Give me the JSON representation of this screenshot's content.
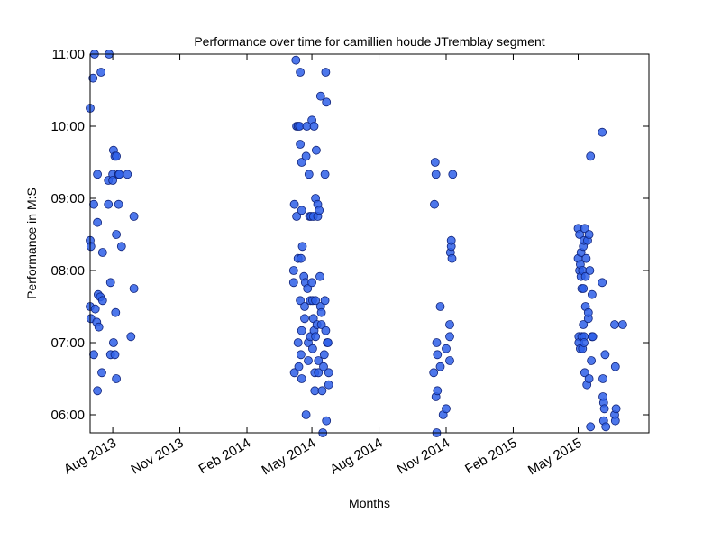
{
  "chart_data": {
    "type": "scatter",
    "title": "Performance over time for camillien houde JTremblay segment",
    "xlabel": "Months",
    "ylabel": "Performance in M:S",
    "x_axis": "date",
    "xlim": [
      "2013-07-01",
      "2015-08-06"
    ],
    "ylim": [
      "05:45",
      "11:00"
    ],
    "x_ticks": [
      {
        "date": "2013-08-01",
        "label": "Aug 2013"
      },
      {
        "date": "2013-11-01",
        "label": "Nov 2013"
      },
      {
        "date": "2014-02-01",
        "label": "Feb 2014"
      },
      {
        "date": "2014-05-01",
        "label": "May 2014"
      },
      {
        "date": "2014-08-01",
        "label": "Aug 2014"
      },
      {
        "date": "2014-11-01",
        "label": "Nov 2014"
      },
      {
        "date": "2015-02-01",
        "label": "Feb 2015"
      },
      {
        "date": "2015-05-01",
        "label": "May 2015"
      }
    ],
    "y_ticks": [
      "06:00",
      "07:00",
      "08:00",
      "09:00",
      "10:00",
      "11:00"
    ],
    "grid": false,
    "legend": false,
    "colors": {
      "marker_fill": "#2e5fe8",
      "marker_edge": "#10237a"
    },
    "points": [
      {
        "x": "2013-07-01",
        "y": "10:15"
      },
      {
        "x": "2013-07-01",
        "y": "08:25"
      },
      {
        "x": "2013-07-02",
        "y": "08:20"
      },
      {
        "x": "2013-07-01",
        "y": "07:30"
      },
      {
        "x": "2013-07-02",
        "y": "07:20"
      },
      {
        "x": "2013-07-05",
        "y": "10:40"
      },
      {
        "x": "2013-07-07",
        "y": "11:00"
      },
      {
        "x": "2013-07-06",
        "y": "08:55"
      },
      {
        "x": "2013-07-06",
        "y": "06:50"
      },
      {
        "x": "2013-07-08",
        "y": "07:28"
      },
      {
        "x": "2013-07-10",
        "y": "07:17"
      },
      {
        "x": "2013-07-11",
        "y": "06:20"
      },
      {
        "x": "2013-07-11",
        "y": "08:40"
      },
      {
        "x": "2013-07-11",
        "y": "09:20"
      },
      {
        "x": "2013-07-12",
        "y": "07:40"
      },
      {
        "x": "2013-07-13",
        "y": "07:13"
      },
      {
        "x": "2013-07-15",
        "y": "07:38"
      },
      {
        "x": "2013-07-16",
        "y": "10:45"
      },
      {
        "x": "2013-07-17",
        "y": "06:35"
      },
      {
        "x": "2013-07-18",
        "y": "07:35"
      },
      {
        "x": "2013-07-18",
        "y": "08:15"
      },
      {
        "x": "2013-07-26",
        "y": "09:15"
      },
      {
        "x": "2013-07-26",
        "y": "08:55"
      },
      {
        "x": "2013-07-27",
        "y": "11:00"
      },
      {
        "x": "2013-07-29",
        "y": "07:50"
      },
      {
        "x": "2013-07-29",
        "y": "06:50"
      },
      {
        "x": "2013-08-01",
        "y": "09:20"
      },
      {
        "x": "2013-08-01",
        "y": "09:15"
      },
      {
        "x": "2013-08-02",
        "y": "09:40"
      },
      {
        "x": "2013-08-02",
        "y": "07:00"
      },
      {
        "x": "2013-08-04",
        "y": "09:35"
      },
      {
        "x": "2013-08-04",
        "y": "06:50"
      },
      {
        "x": "2013-08-05",
        "y": "07:25"
      },
      {
        "x": "2013-08-06",
        "y": "09:35"
      },
      {
        "x": "2013-08-06",
        "y": "08:30"
      },
      {
        "x": "2013-08-06",
        "y": "06:30"
      },
      {
        "x": "2013-08-09",
        "y": "09:20"
      },
      {
        "x": "2013-08-10",
        "y": "09:20"
      },
      {
        "x": "2013-08-09",
        "y": "08:55"
      },
      {
        "x": "2013-08-13",
        "y": "08:20"
      },
      {
        "x": "2013-08-21",
        "y": "09:20"
      },
      {
        "x": "2013-08-26",
        "y": "07:05"
      },
      {
        "x": "2013-08-30",
        "y": "08:45"
      },
      {
        "x": "2013-08-30",
        "y": "07:45"
      },
      {
        "x": "2014-04-06",
        "y": "07:50"
      },
      {
        "x": "2014-04-06",
        "y": "08:00"
      },
      {
        "x": "2014-04-07",
        "y": "08:55"
      },
      {
        "x": "2014-04-07",
        "y": "06:35"
      },
      {
        "x": "2014-04-09",
        "y": "10:55"
      },
      {
        "x": "2014-04-10",
        "y": "10:00"
      },
      {
        "x": "2014-04-10",
        "y": "08:45"
      },
      {
        "x": "2014-04-12",
        "y": "10:00"
      },
      {
        "x": "2014-04-12",
        "y": "08:10"
      },
      {
        "x": "2014-04-12",
        "y": "07:00"
      },
      {
        "x": "2014-04-13",
        "y": "06:40"
      },
      {
        "x": "2014-04-14",
        "y": "10:00"
      },
      {
        "x": "2014-04-15",
        "y": "09:45"
      },
      {
        "x": "2014-04-15",
        "y": "07:35"
      },
      {
        "x": "2014-04-15",
        "y": "10:45"
      },
      {
        "x": "2014-04-16",
        "y": "06:50"
      },
      {
        "x": "2014-04-16",
        "y": "08:10"
      },
      {
        "x": "2014-04-17",
        "y": "09:30"
      },
      {
        "x": "2014-04-17",
        "y": "08:50"
      },
      {
        "x": "2014-04-17",
        "y": "07:10"
      },
      {
        "x": "2014-04-17",
        "y": "06:30"
      },
      {
        "x": "2014-04-18",
        "y": "08:20"
      },
      {
        "x": "2014-04-20",
        "y": "07:55"
      },
      {
        "x": "2014-04-21",
        "y": "07:30"
      },
      {
        "x": "2014-04-21",
        "y": "07:20"
      },
      {
        "x": "2014-04-22",
        "y": "07:50"
      },
      {
        "x": "2014-04-23",
        "y": "06:00"
      },
      {
        "x": "2014-04-23",
        "y": "09:35"
      },
      {
        "x": "2014-04-24",
        "y": "10:00"
      },
      {
        "x": "2014-04-25",
        "y": "07:45"
      },
      {
        "x": "2014-04-26",
        "y": "06:45"
      },
      {
        "x": "2014-04-26",
        "y": "07:00"
      },
      {
        "x": "2014-04-27",
        "y": "09:20"
      },
      {
        "x": "2014-04-28",
        "y": "08:45"
      },
      {
        "x": "2014-04-29",
        "y": "07:05"
      },
      {
        "x": "2014-04-29",
        "y": "07:35"
      },
      {
        "x": "2014-04-30",
        "y": "08:45"
      },
      {
        "x": "2014-05-01",
        "y": "07:50"
      },
      {
        "x": "2014-05-01",
        "y": "10:05"
      },
      {
        "x": "2014-05-02",
        "y": "07:35"
      },
      {
        "x": "2014-05-02",
        "y": "06:55"
      },
      {
        "x": "2014-05-03",
        "y": "07:20"
      },
      {
        "x": "2014-05-03",
        "y": "08:45"
      },
      {
        "x": "2014-05-04",
        "y": "10:00"
      },
      {
        "x": "2014-05-04",
        "y": "07:10"
      },
      {
        "x": "2014-05-05",
        "y": "06:20"
      },
      {
        "x": "2014-05-05",
        "y": "06:35"
      },
      {
        "x": "2014-05-06",
        "y": "09:00"
      },
      {
        "x": "2014-05-06",
        "y": "07:35"
      },
      {
        "x": "2014-05-06",
        "y": "07:05"
      },
      {
        "x": "2014-05-07",
        "y": "09:40"
      },
      {
        "x": "2014-05-08",
        "y": "07:15"
      },
      {
        "x": "2014-05-09",
        "y": "08:45"
      },
      {
        "x": "2014-05-09",
        "y": "08:55"
      },
      {
        "x": "2014-05-10",
        "y": "06:35"
      },
      {
        "x": "2014-05-10",
        "y": "06:45"
      },
      {
        "x": "2014-05-11",
        "y": "08:50"
      },
      {
        "x": "2014-05-12",
        "y": "07:55"
      },
      {
        "x": "2014-05-13",
        "y": "07:30"
      },
      {
        "x": "2014-05-13",
        "y": "10:25"
      },
      {
        "x": "2014-05-14",
        "y": "07:25"
      },
      {
        "x": "2014-05-14",
        "y": "07:15"
      },
      {
        "x": "2014-05-15",
        "y": "06:20"
      },
      {
        "x": "2014-05-16",
        "y": "05:45"
      },
      {
        "x": "2014-05-17",
        "y": "06:40"
      },
      {
        "x": "2014-05-18",
        "y": "06:50"
      },
      {
        "x": "2014-05-19",
        "y": "07:35"
      },
      {
        "x": "2014-05-19",
        "y": "09:20"
      },
      {
        "x": "2014-05-20",
        "y": "07:10"
      },
      {
        "x": "2014-05-20",
        "y": "10:45"
      },
      {
        "x": "2014-05-21",
        "y": "10:20"
      },
      {
        "x": "2014-05-21",
        "y": "05:55"
      },
      {
        "x": "2014-05-22",
        "y": "07:00"
      },
      {
        "x": "2014-05-23",
        "y": "07:00"
      },
      {
        "x": "2014-05-24",
        "y": "06:35"
      },
      {
        "x": "2014-05-24",
        "y": "06:25"
      },
      {
        "x": "2014-10-15",
        "y": "06:35"
      },
      {
        "x": "2014-10-16",
        "y": "08:55"
      },
      {
        "x": "2014-10-17",
        "y": "09:30"
      },
      {
        "x": "2014-10-18",
        "y": "09:20"
      },
      {
        "x": "2014-10-18",
        "y": "06:15"
      },
      {
        "x": "2014-10-19",
        "y": "07:00"
      },
      {
        "x": "2014-10-20",
        "y": "06:50"
      },
      {
        "x": "2014-10-20",
        "y": "06:20"
      },
      {
        "x": "2014-10-19",
        "y": "05:45"
      },
      {
        "x": "2014-10-24",
        "y": "07:30"
      },
      {
        "x": "2014-10-24",
        "y": "06:40"
      },
      {
        "x": "2014-10-28",
        "y": "06:00"
      },
      {
        "x": "2014-11-01",
        "y": "06:55"
      },
      {
        "x": "2014-11-01",
        "y": "06:05"
      },
      {
        "x": "2014-11-06",
        "y": "07:15"
      },
      {
        "x": "2014-11-06",
        "y": "07:05"
      },
      {
        "x": "2014-11-06",
        "y": "06:45"
      },
      {
        "x": "2014-11-07",
        "y": "08:15"
      },
      {
        "x": "2014-11-08",
        "y": "08:20"
      },
      {
        "x": "2014-11-08",
        "y": "08:25"
      },
      {
        "x": "2014-11-09",
        "y": "08:10"
      },
      {
        "x": "2014-11-10",
        "y": "09:20"
      },
      {
        "x": "2015-05-01",
        "y": "08:35"
      },
      {
        "x": "2015-05-01",
        "y": "08:10"
      },
      {
        "x": "2015-05-02",
        "y": "07:05"
      },
      {
        "x": "2015-05-02",
        "y": "07:00"
      },
      {
        "x": "2015-05-03",
        "y": "08:30"
      },
      {
        "x": "2015-05-03",
        "y": "08:00"
      },
      {
        "x": "2015-05-04",
        "y": "06:55"
      },
      {
        "x": "2015-05-04",
        "y": "08:05"
      },
      {
        "x": "2015-05-05",
        "y": "08:15"
      },
      {
        "x": "2015-05-05",
        "y": "07:55"
      },
      {
        "x": "2015-05-06",
        "y": "07:45"
      },
      {
        "x": "2015-05-06",
        "y": "07:05"
      },
      {
        "x": "2015-05-07",
        "y": "08:00"
      },
      {
        "x": "2015-05-07",
        "y": "06:55"
      },
      {
        "x": "2015-05-08",
        "y": "08:20"
      },
      {
        "x": "2015-05-08",
        "y": "07:45"
      },
      {
        "x": "2015-05-08",
        "y": "07:15"
      },
      {
        "x": "2015-05-09",
        "y": "08:25"
      },
      {
        "x": "2015-05-09",
        "y": "07:05"
      },
      {
        "x": "2015-05-09",
        "y": "07:00"
      },
      {
        "x": "2015-05-10",
        "y": "06:35"
      },
      {
        "x": "2015-05-10",
        "y": "08:35"
      },
      {
        "x": "2015-05-11",
        "y": "07:55"
      },
      {
        "x": "2015-05-11",
        "y": "07:30"
      },
      {
        "x": "2015-05-12",
        "y": "08:10"
      },
      {
        "x": "2015-05-13",
        "y": "06:25"
      },
      {
        "x": "2015-05-14",
        "y": "08:25"
      },
      {
        "x": "2015-05-15",
        "y": "07:20"
      },
      {
        "x": "2015-05-15",
        "y": "07:25"
      },
      {
        "x": "2015-05-16",
        "y": "06:30"
      },
      {
        "x": "2015-05-16",
        "y": "08:30"
      },
      {
        "x": "2015-05-17",
        "y": "08:00"
      },
      {
        "x": "2015-05-18",
        "y": "09:35"
      },
      {
        "x": "2015-05-19",
        "y": "06:45"
      },
      {
        "x": "2015-05-20",
        "y": "07:40"
      },
      {
        "x": "2015-05-20",
        "y": "07:05"
      },
      {
        "x": "2015-05-21",
        "y": "07:05"
      },
      {
        "x": "2015-05-18",
        "y": "05:50"
      },
      {
        "x": "2015-06-03",
        "y": "09:55"
      },
      {
        "x": "2015-06-03",
        "y": "07:50"
      },
      {
        "x": "2015-06-04",
        "y": "06:30"
      },
      {
        "x": "2015-06-04",
        "y": "06:15"
      },
      {
        "x": "2015-06-05",
        "y": "05:55"
      },
      {
        "x": "2015-06-05",
        "y": "06:10"
      },
      {
        "x": "2015-06-06",
        "y": "06:05"
      },
      {
        "x": "2015-06-07",
        "y": "06:50"
      },
      {
        "x": "2015-06-08",
        "y": "05:50"
      },
      {
        "x": "2015-06-20",
        "y": "06:00"
      },
      {
        "x": "2015-06-22",
        "y": "06:05"
      },
      {
        "x": "2015-06-21",
        "y": "05:55"
      },
      {
        "x": "2015-06-21",
        "y": "06:40"
      },
      {
        "x": "2015-06-20",
        "y": "07:15"
      },
      {
        "x": "2015-07-01",
        "y": "07:15"
      }
    ]
  }
}
